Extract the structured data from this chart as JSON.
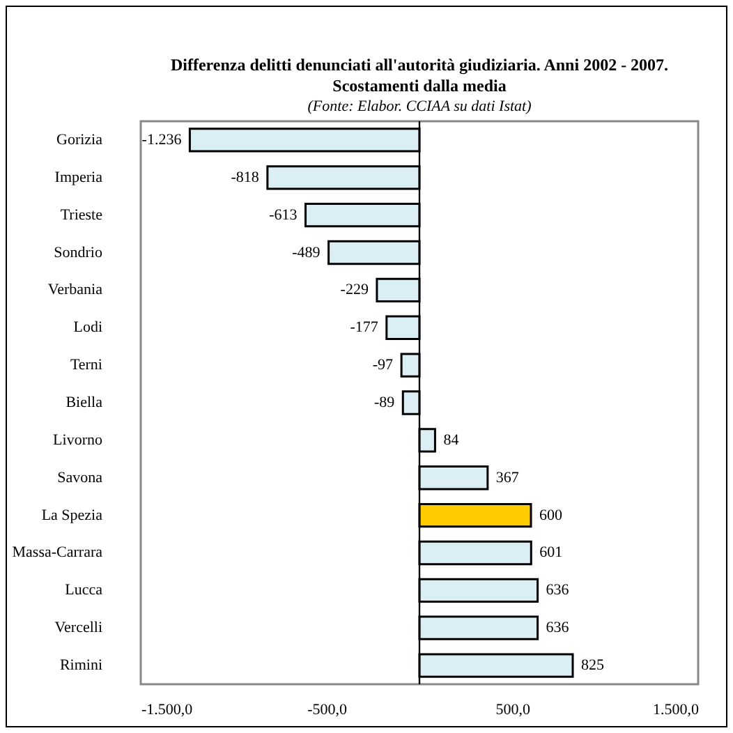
{
  "chart_data": {
    "type": "bar",
    "orientation": "horizontal",
    "title": "Differenza delitti denunciati all'autorità giudiziaria.  Anni 2002 - 2007.",
    "subtitle": "Scostamenti dalla media",
    "annotations": [
      "(Fonte: Elabor. CCIAA su dati Istat)"
    ],
    "categories": [
      "Gorizia",
      "Imperia",
      "Trieste",
      "Sondrio",
      "Verbania",
      "Lodi",
      "Terni",
      "Biella",
      "Livorno",
      "Savona",
      "La Spezia",
      "Massa-Carrara",
      "Lucca",
      "Vercelli",
      "Rimini"
    ],
    "values": [
      -1236,
      -818,
      -613,
      -489,
      -229,
      -177,
      -97,
      -89,
      84,
      367,
      600,
      601,
      636,
      636,
      825
    ],
    "value_labels": [
      "-1.236",
      "-818",
      "-613",
      "-489",
      "-229",
      "-177",
      "-97",
      "-89",
      "84",
      "367",
      "600",
      "601",
      "636",
      "636",
      "825"
    ],
    "colors": [
      "#dbeef4",
      "#dbeef4",
      "#dbeef4",
      "#dbeef4",
      "#dbeef4",
      "#dbeef4",
      "#dbeef4",
      "#dbeef4",
      "#dbeef4",
      "#dbeef4",
      "#ffcc00",
      "#dbeef4",
      "#dbeef4",
      "#dbeef4",
      "#dbeef4"
    ],
    "xlim": [
      -1500,
      1500
    ],
    "xticks": [
      {
        "value": -1500,
        "label": "-1.500,0"
      },
      {
        "value": -500,
        "label": "-500,0"
      },
      {
        "value": 500,
        "label": "500,0"
      },
      {
        "value": 1500,
        "label": "1.500,0"
      }
    ],
    "grid": false
  }
}
